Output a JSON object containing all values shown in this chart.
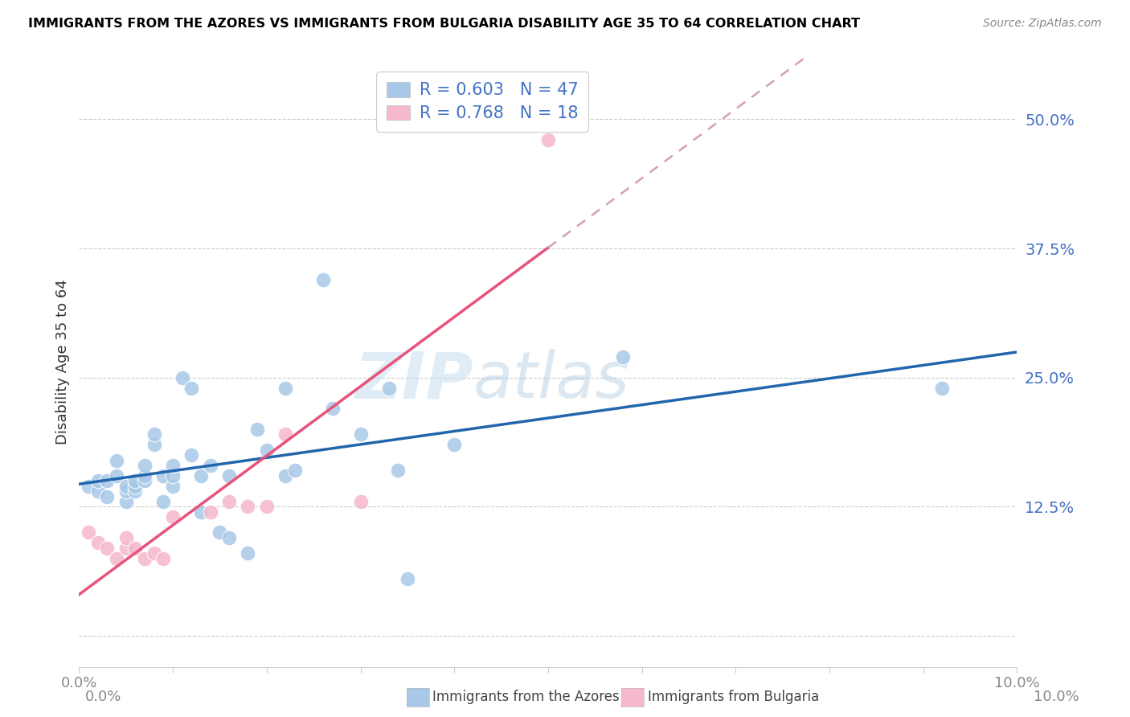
{
  "title": "IMMIGRANTS FROM THE AZORES VS IMMIGRANTS FROM BULGARIA DISABILITY AGE 35 TO 64 CORRELATION CHART",
  "source": "Source: ZipAtlas.com",
  "ylabel": "Disability Age 35 to 64",
  "xlim": [
    0.0,
    0.1
  ],
  "ylim": [
    -0.03,
    0.56
  ],
  "yticks": [
    0.0,
    0.125,
    0.25,
    0.375,
    0.5
  ],
  "ytick_labels": [
    "",
    "12.5%",
    "25.0%",
    "37.5%",
    "50.0%"
  ],
  "xticks": [
    0.0,
    0.01,
    0.02,
    0.03,
    0.04,
    0.05,
    0.06,
    0.07,
    0.08,
    0.09,
    0.1
  ],
  "xtick_labels_show": [
    "0.0%",
    "",
    "",
    "",
    "",
    "",
    "",
    "",
    "",
    "",
    "10.0%"
  ],
  "legend_r1": "R = 0.603",
  "legend_n1": "N = 47",
  "legend_r2": "R = 0.768",
  "legend_n2": "N = 18",
  "color_azores": "#a8c8e8",
  "color_bulgaria": "#f5b8cc",
  "color_line_azores": "#2166ac",
  "color_line_bulgaria": "#e8537a",
  "color_dashed": "#d4a0b0",
  "watermark_zip": "ZIP",
  "watermark_atlas": "atlas",
  "azores_x": [
    0.001,
    0.002,
    0.002,
    0.003,
    0.003,
    0.004,
    0.004,
    0.005,
    0.005,
    0.005,
    0.006,
    0.006,
    0.006,
    0.007,
    0.007,
    0.007,
    0.008,
    0.008,
    0.009,
    0.009,
    0.01,
    0.01,
    0.01,
    0.011,
    0.012,
    0.012,
    0.013,
    0.013,
    0.014,
    0.015,
    0.016,
    0.016,
    0.018,
    0.019,
    0.02,
    0.022,
    0.022,
    0.023,
    0.026,
    0.027,
    0.03,
    0.033,
    0.034,
    0.035,
    0.04,
    0.058,
    0.092
  ],
  "azores_y": [
    0.145,
    0.14,
    0.15,
    0.135,
    0.15,
    0.155,
    0.17,
    0.13,
    0.14,
    0.145,
    0.14,
    0.145,
    0.15,
    0.15,
    0.155,
    0.165,
    0.185,
    0.195,
    0.13,
    0.155,
    0.145,
    0.155,
    0.165,
    0.25,
    0.24,
    0.175,
    0.12,
    0.155,
    0.165,
    0.1,
    0.095,
    0.155,
    0.08,
    0.2,
    0.18,
    0.24,
    0.155,
    0.16,
    0.345,
    0.22,
    0.195,
    0.24,
    0.16,
    0.055,
    0.185,
    0.27,
    0.24
  ],
  "bulgaria_x": [
    0.001,
    0.002,
    0.003,
    0.004,
    0.005,
    0.005,
    0.006,
    0.007,
    0.008,
    0.009,
    0.01,
    0.014,
    0.016,
    0.018,
    0.02,
    0.022,
    0.03,
    0.05
  ],
  "bulgaria_y": [
    0.1,
    0.09,
    0.085,
    0.075,
    0.085,
    0.095,
    0.085,
    0.075,
    0.08,
    0.075,
    0.115,
    0.12,
    0.13,
    0.125,
    0.125,
    0.195,
    0.13,
    0.48
  ]
}
